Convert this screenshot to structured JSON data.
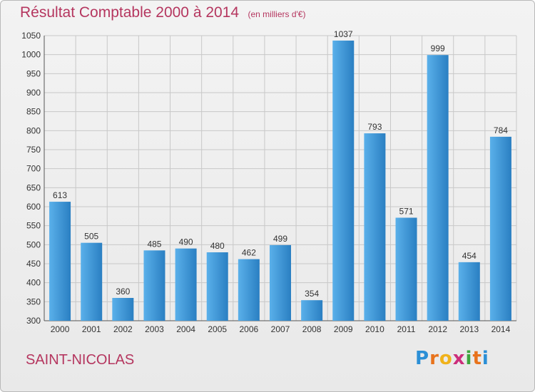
{
  "title": "Résultat Comptable 2000 à 2014",
  "subtitle": "(en milliers d'€)",
  "commune": "SAINT-NICOLAS",
  "logo": {
    "letters": [
      "P",
      "r",
      "o",
      "x",
      "i",
      "t",
      "i"
    ],
    "colors": [
      "#2b8fd6",
      "#e8731c",
      "#f0b21a",
      "#cc2e7b",
      "#3ea63e",
      "#e8731c",
      "#2b8fd6"
    ]
  },
  "colors": {
    "bar_light": "#5ab0ea",
    "bar_dark": "#2a7fc2",
    "grid": "#c8c8c8",
    "text": "#333333"
  },
  "chart_data": {
    "type": "bar",
    "title": "Résultat Comptable 2000 à 2014",
    "subtitle": "(en milliers d'€)",
    "categories": [
      "2000",
      "2001",
      "2002",
      "2003",
      "2004",
      "2005",
      "2006",
      "2007",
      "2008",
      "2009",
      "2010",
      "2011",
      "2012",
      "2013",
      "2014"
    ],
    "values": [
      613,
      505,
      360,
      485,
      490,
      480,
      462,
      499,
      354,
      1037,
      793,
      571,
      999,
      454,
      784
    ],
    "ylim": [
      300,
      1050
    ],
    "yticks": [
      300,
      350,
      400,
      450,
      500,
      550,
      600,
      650,
      700,
      750,
      800,
      850,
      900,
      950,
      1000,
      1050
    ],
    "grid": true,
    "legend": "none"
  }
}
